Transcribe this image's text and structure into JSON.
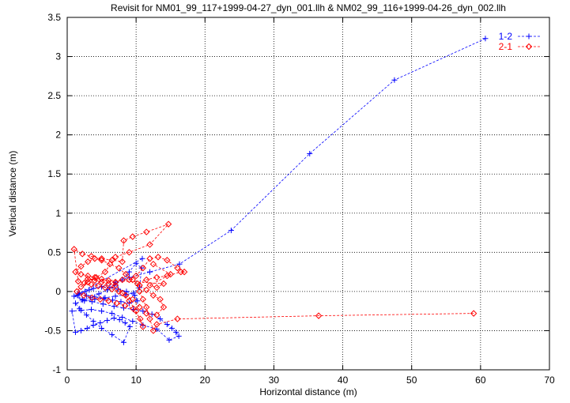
{
  "chart_data": {
    "type": "line",
    "title": "Revisit for NM01_99_117+1999-04-27_dyn_001.llh & NM02_99_116+1999-04-26_dyn_002.llh",
    "xlabel": "Horizontal distance (m)",
    "ylabel": "Vertical distance (m)",
    "xlim": [
      0,
      70
    ],
    "ylim": [
      -1,
      3.5
    ],
    "xticks": [
      0,
      10,
      20,
      30,
      40,
      50,
      60,
      70
    ],
    "xtick_labels": [
      "0",
      "10",
      "20",
      "30",
      "40",
      "50",
      "60",
      "70"
    ],
    "yticks": [
      -1,
      -0.5,
      0,
      0.5,
      1,
      1.5,
      2,
      2.5,
      3,
      3.5
    ],
    "ytick_labels": [
      "-1",
      "-0.5",
      "0",
      "0.5",
      "1",
      "1.5",
      "2",
      "2.5",
      "3",
      "3.5"
    ],
    "grid": true,
    "legend_position": "top-right",
    "series": [
      {
        "name": "1-2",
        "color": "#0000ff",
        "marker": "plus",
        "points": [
          [
            60.7,
            3.23
          ],
          [
            47.5,
            2.7
          ],
          [
            35.2,
            1.76
          ],
          [
            23.8,
            0.78
          ],
          [
            16.3,
            0.35
          ],
          [
            12.0,
            0.25
          ],
          [
            9.0,
            0.18
          ],
          [
            7.0,
            0.12
          ],
          [
            5.0,
            0.06
          ],
          [
            3.2,
            0.02
          ],
          [
            1.8,
            -0.02
          ],
          [
            1.0,
            -0.06
          ],
          [
            2.2,
            -0.1
          ],
          [
            3.6,
            -0.13
          ],
          [
            5.2,
            -0.16
          ],
          [
            6.8,
            -0.19
          ],
          [
            8.2,
            -0.21
          ],
          [
            9.6,
            -0.23
          ],
          [
            11.0,
            -0.25
          ],
          [
            12.3,
            -0.29
          ],
          [
            13.5,
            -0.35
          ],
          [
            14.5,
            -0.42
          ],
          [
            15.2,
            -0.47
          ],
          [
            15.8,
            -0.52
          ],
          [
            16.2,
            -0.57
          ],
          [
            14.8,
            -0.62
          ],
          [
            13.0,
            -0.48
          ],
          [
            11.0,
            -0.43
          ],
          [
            9.5,
            -0.38
          ],
          [
            8.0,
            -0.33
          ],
          [
            6.5,
            -0.28
          ],
          [
            5.0,
            -0.25
          ],
          [
            3.5,
            -0.23
          ],
          [
            2.0,
            -0.24
          ],
          [
            0.7,
            -0.25
          ],
          [
            1.2,
            -0.52
          ],
          [
            2.0,
            -0.5
          ],
          [
            2.9,
            -0.47
          ],
          [
            3.8,
            -0.43
          ],
          [
            4.8,
            -0.4
          ],
          [
            5.8,
            -0.37
          ],
          [
            6.8,
            -0.34
          ],
          [
            7.6,
            -0.36
          ],
          [
            8.4,
            -0.4
          ],
          [
            9.1,
            -0.45
          ],
          [
            8.2,
            -0.65
          ],
          [
            6.5,
            -0.55
          ],
          [
            5.0,
            -0.47
          ],
          [
            3.8,
            -0.38
          ],
          [
            2.8,
            -0.3
          ],
          [
            1.8,
            -0.22
          ],
          [
            1.2,
            -0.15
          ],
          [
            2.5,
            -0.12
          ],
          [
            4.0,
            -0.1
          ],
          [
            5.5,
            -0.08
          ],
          [
            7.0,
            -0.06
          ],
          [
            8.5,
            -0.04
          ],
          [
            9.6,
            -0.02
          ],
          [
            10.5,
            0.05
          ],
          [
            10.8,
            0.3
          ],
          [
            10.0,
            0.36
          ],
          [
            9.0,
            0.25
          ],
          [
            8.0,
            0.15
          ],
          [
            6.9,
            0.08
          ],
          [
            5.8,
            0.02
          ],
          [
            4.6,
            -0.03
          ],
          [
            3.4,
            -0.08
          ],
          [
            2.2,
            -0.11
          ],
          [
            1.5,
            -0.05
          ],
          [
            2.6,
            0.0
          ],
          [
            3.8,
            0.04
          ],
          [
            5.0,
            0.06
          ],
          [
            6.2,
            0.05
          ],
          [
            7.4,
            0.03
          ],
          [
            8.6,
            0.0
          ],
          [
            9.8,
            -0.05
          ],
          [
            10.2,
            -0.12
          ],
          [
            9.0,
            -0.15
          ],
          [
            7.8,
            -0.13
          ],
          [
            6.6,
            -0.11
          ],
          [
            5.3,
            -0.09
          ],
          [
            4.0,
            -0.07
          ],
          [
            2.8,
            -0.05
          ],
          [
            1.6,
            -0.03
          ],
          [
            10.9,
            0.42
          ]
        ]
      },
      {
        "name": "2-1",
        "color": "#ff0000",
        "marker": "diamond",
        "points": [
          [
            59.0,
            -0.28
          ],
          [
            36.5,
            -0.31
          ],
          [
            16.0,
            -0.35
          ],
          [
            13.0,
            -0.42
          ],
          [
            12.5,
            -0.5
          ],
          [
            12.0,
            -0.35
          ],
          [
            11.5,
            -0.2
          ],
          [
            11.0,
            -0.1
          ],
          [
            10.5,
            0.0
          ],
          [
            10.2,
            0.1
          ],
          [
            11.5,
            0.15
          ],
          [
            13.0,
            0.18
          ],
          [
            14.5,
            0.2
          ],
          [
            16.5,
            0.25
          ],
          [
            17.0,
            0.25
          ],
          [
            16.0,
            0.3
          ],
          [
            14.5,
            0.4
          ],
          [
            13.2,
            0.44
          ],
          [
            12.0,
            0.42
          ],
          [
            11.0,
            0.3
          ],
          [
            10.0,
            0.2
          ],
          [
            9.0,
            0.15
          ],
          [
            8.0,
            0.15
          ],
          [
            7.0,
            0.12
          ],
          [
            6.0,
            0.14
          ],
          [
            5.0,
            0.16
          ],
          [
            4.0,
            0.18
          ],
          [
            3.0,
            0.2
          ],
          [
            2.0,
            0.22
          ],
          [
            1.2,
            0.25
          ],
          [
            2.0,
            0.32
          ],
          [
            3.0,
            0.38
          ],
          [
            4.0,
            0.42
          ],
          [
            5.0,
            0.4
          ],
          [
            6.2,
            0.35
          ],
          [
            7.5,
            0.3
          ],
          [
            8.5,
            0.22
          ],
          [
            9.5,
            0.15
          ],
          [
            10.5,
            0.08
          ],
          [
            11.5,
            0.02
          ],
          [
            12.5,
            -0.05
          ],
          [
            13.5,
            -0.1
          ],
          [
            14.0,
            -0.2
          ],
          [
            13.0,
            -0.3
          ],
          [
            11.5,
            -0.28
          ],
          [
            10.5,
            -0.2
          ],
          [
            9.5,
            -0.1
          ],
          [
            8.5,
            -0.05
          ],
          [
            7.5,
            0.0
          ],
          [
            6.5,
            0.03
          ],
          [
            5.5,
            0.05
          ],
          [
            4.5,
            0.07
          ],
          [
            3.5,
            0.09
          ],
          [
            2.5,
            0.11
          ],
          [
            1.6,
            0.13
          ],
          [
            1.0,
            0.54
          ],
          [
            2.2,
            0.48
          ],
          [
            3.5,
            0.45
          ],
          [
            5.0,
            0.42
          ],
          [
            6.5,
            0.4
          ],
          [
            8.0,
            0.38
          ],
          [
            8.2,
            0.65
          ],
          [
            9.5,
            0.7
          ],
          [
            11.5,
            0.76
          ],
          [
            14.7,
            0.86
          ],
          [
            12.0,
            0.6
          ],
          [
            9.0,
            0.5
          ],
          [
            7.0,
            0.44
          ],
          [
            5.5,
            0.25
          ],
          [
            4.2,
            0.18
          ],
          [
            3.0,
            0.12
          ],
          [
            2.0,
            0.06
          ],
          [
            1.4,
            0.0
          ],
          [
            2.4,
            -0.05
          ],
          [
            3.6,
            -0.08
          ],
          [
            4.8,
            -0.1
          ],
          [
            6.0,
            -0.12
          ],
          [
            7.2,
            -0.15
          ],
          [
            8.4,
            -0.18
          ],
          [
            9.6,
            -0.22
          ],
          [
            10.6,
            -0.35
          ],
          [
            11.0,
            -0.45
          ],
          [
            10.0,
            -0.25
          ],
          [
            9.0,
            -0.12
          ],
          [
            8.0,
            -0.02
          ],
          [
            7.0,
            0.08
          ],
          [
            6.0,
            0.1
          ],
          [
            5.0,
            0.12
          ],
          [
            4.0,
            0.14
          ],
          [
            3.0,
            0.16
          ],
          [
            14.0,
            0.1
          ],
          [
            13.0,
            0.05
          ],
          [
            12.0,
            0.08
          ],
          [
            15.0,
            0.22
          ],
          [
            12.5,
            0.35
          ]
        ]
      }
    ]
  }
}
